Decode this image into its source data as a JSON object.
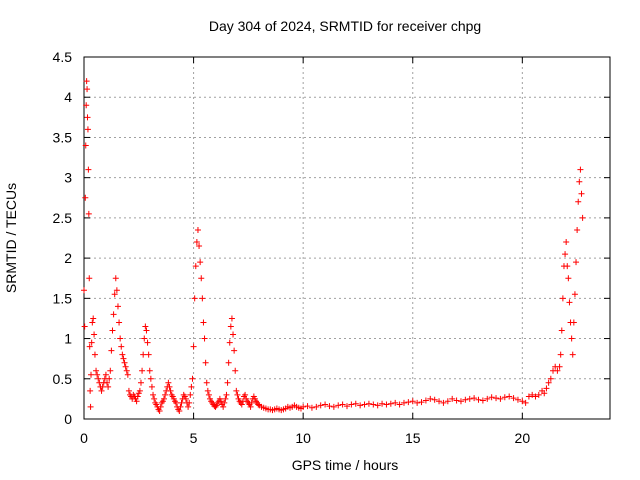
{
  "chart_data": {
    "type": "scatter",
    "title": "Day 304 of 2024, SRMTID for receiver chpg",
    "xlabel": "GPS time / hours",
    "ylabel": "SRMTID / TECUs",
    "xlim": [
      0,
      24
    ],
    "ylim": [
      0,
      4.5
    ],
    "xticks": [
      0,
      5,
      10,
      15,
      20
    ],
    "xtick_labels": [
      "0",
      "5",
      "10",
      "15",
      "20"
    ],
    "yticks": [
      0,
      0.5,
      1,
      1.5,
      2,
      2.5,
      3,
      3.5,
      4,
      4.5
    ],
    "ytick_labels": [
      "0",
      "0.5",
      "1",
      "1.5",
      "2",
      "2.5",
      "3",
      "3.5",
      "4",
      "4.5"
    ],
    "grid": true,
    "marker": "plus",
    "series": [
      {
        "name": "SRMTID",
        "color": "#ff0000",
        "points": [
          [
            0.0,
            1.6
          ],
          [
            0.03,
            1.15
          ],
          [
            0.06,
            2.75
          ],
          [
            0.08,
            3.4
          ],
          [
            0.1,
            3.9
          ],
          [
            0.12,
            4.2
          ],
          [
            0.14,
            4.1
          ],
          [
            0.16,
            3.75
          ],
          [
            0.18,
            3.6
          ],
          [
            0.2,
            3.1
          ],
          [
            0.22,
            2.55
          ],
          [
            0.24,
            1.75
          ],
          [
            0.26,
            0.9
          ],
          [
            0.28,
            0.35
          ],
          [
            0.3,
            0.15
          ],
          [
            0.32,
            0.55
          ],
          [
            0.35,
            0.95
          ],
          [
            0.38,
            1.2
          ],
          [
            0.42,
            1.25
          ],
          [
            0.46,
            1.05
          ],
          [
            0.5,
            0.8
          ],
          [
            0.55,
            0.6
          ],
          [
            0.6,
            0.55
          ],
          [
            0.65,
            0.5
          ],
          [
            0.7,
            0.45
          ],
          [
            0.75,
            0.4
          ],
          [
            0.8,
            0.35
          ],
          [
            0.85,
            0.4
          ],
          [
            0.9,
            0.45
          ],
          [
            0.95,
            0.5
          ],
          [
            1.0,
            0.55
          ],
          [
            1.05,
            0.45
          ],
          [
            1.1,
            0.4
          ],
          [
            1.15,
            0.5
          ],
          [
            1.2,
            0.6
          ],
          [
            1.25,
            0.85
          ],
          [
            1.3,
            1.1
          ],
          [
            1.35,
            1.3
          ],
          [
            1.4,
            1.55
          ],
          [
            1.45,
            1.75
          ],
          [
            1.5,
            1.6
          ],
          [
            1.55,
            1.4
          ],
          [
            1.6,
            1.2
          ],
          [
            1.65,
            1.0
          ],
          [
            1.7,
            0.9
          ],
          [
            1.75,
            0.8
          ],
          [
            1.8,
            0.75
          ],
          [
            1.85,
            0.7
          ],
          [
            1.9,
            0.65
          ],
          [
            1.95,
            0.6
          ],
          [
            2.0,
            0.55
          ],
          [
            2.05,
            0.35
          ],
          [
            2.1,
            0.3
          ],
          [
            2.15,
            0.28
          ],
          [
            2.2,
            0.25
          ],
          [
            2.25,
            0.3
          ],
          [
            2.3,
            0.28
          ],
          [
            2.35,
            0.25
          ],
          [
            2.4,
            0.22
          ],
          [
            2.45,
            0.28
          ],
          [
            2.5,
            0.32
          ],
          [
            2.55,
            0.35
          ],
          [
            2.6,
            0.45
          ],
          [
            2.65,
            0.6
          ],
          [
            2.7,
            0.8
          ],
          [
            2.75,
            1.0
          ],
          [
            2.8,
            1.15
          ],
          [
            2.85,
            1.1
          ],
          [
            2.9,
            0.95
          ],
          [
            2.95,
            0.8
          ],
          [
            3.0,
            0.6
          ],
          [
            3.05,
            0.5
          ],
          [
            3.1,
            0.4
          ],
          [
            3.15,
            0.3
          ],
          [
            3.2,
            0.25
          ],
          [
            3.25,
            0.2
          ],
          [
            3.3,
            0.18
          ],
          [
            3.35,
            0.15
          ],
          [
            3.4,
            0.12
          ],
          [
            3.45,
            0.1
          ],
          [
            3.5,
            0.15
          ],
          [
            3.55,
            0.2
          ],
          [
            3.6,
            0.22
          ],
          [
            3.65,
            0.25
          ],
          [
            3.7,
            0.3
          ],
          [
            3.75,
            0.35
          ],
          [
            3.8,
            0.4
          ],
          [
            3.85,
            0.45
          ],
          [
            3.9,
            0.4
          ],
          [
            3.95,
            0.35
          ],
          [
            4.0,
            0.3
          ],
          [
            4.05,
            0.28
          ],
          [
            4.1,
            0.25
          ],
          [
            4.15,
            0.22
          ],
          [
            4.2,
            0.2
          ],
          [
            4.25,
            0.15
          ],
          [
            4.3,
            0.12
          ],
          [
            4.35,
            0.1
          ],
          [
            4.4,
            0.15
          ],
          [
            4.45,
            0.2
          ],
          [
            4.5,
            0.25
          ],
          [
            4.55,
            0.3
          ],
          [
            4.6,
            0.28
          ],
          [
            4.65,
            0.25
          ],
          [
            4.7,
            0.2
          ],
          [
            4.75,
            0.15
          ],
          [
            4.8,
            0.2
          ],
          [
            4.85,
            0.3
          ],
          [
            4.9,
            0.4
          ],
          [
            4.95,
            0.5
          ],
          [
            5.0,
            0.9
          ],
          [
            5.05,
            1.5
          ],
          [
            5.1,
            1.9
          ],
          [
            5.15,
            2.2
          ],
          [
            5.2,
            2.35
          ],
          [
            5.25,
            2.15
          ],
          [
            5.3,
            1.95
          ],
          [
            5.35,
            1.75
          ],
          [
            5.4,
            1.5
          ],
          [
            5.45,
            1.2
          ],
          [
            5.5,
            1.0
          ],
          [
            5.55,
            0.7
          ],
          [
            5.6,
            0.45
          ],
          [
            5.65,
            0.35
          ],
          [
            5.7,
            0.3
          ],
          [
            5.75,
            0.25
          ],
          [
            5.8,
            0.22
          ],
          [
            5.85,
            0.2
          ],
          [
            5.9,
            0.18
          ],
          [
            5.95,
            0.16
          ],
          [
            6.0,
            0.15
          ],
          [
            6.05,
            0.17
          ],
          [
            6.1,
            0.2
          ],
          [
            6.15,
            0.22
          ],
          [
            6.2,
            0.25
          ],
          [
            6.25,
            0.22
          ],
          [
            6.3,
            0.18
          ],
          [
            6.35,
            0.15
          ],
          [
            6.4,
            0.2
          ],
          [
            6.45,
            0.25
          ],
          [
            6.5,
            0.3
          ],
          [
            6.55,
            0.45
          ],
          [
            6.6,
            0.7
          ],
          [
            6.65,
            0.95
          ],
          [
            6.7,
            1.15
          ],
          [
            6.75,
            1.25
          ],
          [
            6.8,
            1.05
          ],
          [
            6.85,
            0.85
          ],
          [
            6.9,
            0.6
          ],
          [
            6.95,
            0.35
          ],
          [
            7.0,
            0.3
          ],
          [
            7.05,
            0.25
          ],
          [
            7.1,
            0.22
          ],
          [
            7.15,
            0.2
          ],
          [
            7.2,
            0.18
          ],
          [
            7.25,
            0.22
          ],
          [
            7.3,
            0.28
          ],
          [
            7.35,
            0.3
          ],
          [
            7.4,
            0.25
          ],
          [
            7.45,
            0.22
          ],
          [
            7.5,
            0.2
          ],
          [
            7.55,
            0.18
          ],
          [
            7.6,
            0.15
          ],
          [
            7.65,
            0.2
          ],
          [
            7.7,
            0.25
          ],
          [
            7.75,
            0.28
          ],
          [
            7.8,
            0.25
          ],
          [
            7.85,
            0.22
          ],
          [
            7.9,
            0.2
          ],
          [
            7.95,
            0.18
          ],
          [
            8.0,
            0.17
          ],
          [
            8.1,
            0.15
          ],
          [
            8.2,
            0.14
          ],
          [
            8.3,
            0.13
          ],
          [
            8.4,
            0.12
          ],
          [
            8.5,
            0.12
          ],
          [
            8.6,
            0.11
          ],
          [
            8.7,
            0.12
          ],
          [
            8.8,
            0.13
          ],
          [
            8.9,
            0.12
          ],
          [
            9.0,
            0.11
          ],
          [
            9.1,
            0.12
          ],
          [
            9.2,
            0.13
          ],
          [
            9.3,
            0.15
          ],
          [
            9.4,
            0.14
          ],
          [
            9.5,
            0.15
          ],
          [
            9.6,
            0.17
          ],
          [
            9.7,
            0.15
          ],
          [
            9.8,
            0.14
          ],
          [
            9.9,
            0.13
          ],
          [
            10.0,
            0.15
          ],
          [
            10.2,
            0.16
          ],
          [
            10.4,
            0.14
          ],
          [
            10.6,
            0.15
          ],
          [
            10.8,
            0.17
          ],
          [
            11.0,
            0.18
          ],
          [
            11.2,
            0.16
          ],
          [
            11.4,
            0.15
          ],
          [
            11.6,
            0.17
          ],
          [
            11.8,
            0.18
          ],
          [
            12.0,
            0.16
          ],
          [
            12.2,
            0.18
          ],
          [
            12.4,
            0.19
          ],
          [
            12.6,
            0.17
          ],
          [
            12.8,
            0.18
          ],
          [
            13.0,
            0.19
          ],
          [
            13.2,
            0.18
          ],
          [
            13.4,
            0.17
          ],
          [
            13.6,
            0.19
          ],
          [
            13.8,
            0.18
          ],
          [
            14.0,
            0.19
          ],
          [
            14.2,
            0.2
          ],
          [
            14.4,
            0.18
          ],
          [
            14.6,
            0.2
          ],
          [
            14.8,
            0.21
          ],
          [
            15.0,
            0.22
          ],
          [
            15.2,
            0.2
          ],
          [
            15.4,
            0.21
          ],
          [
            15.6,
            0.23
          ],
          [
            15.8,
            0.25
          ],
          [
            16.0,
            0.24
          ],
          [
            16.2,
            0.22
          ],
          [
            16.4,
            0.2
          ],
          [
            16.6,
            0.22
          ],
          [
            16.8,
            0.25
          ],
          [
            17.0,
            0.23
          ],
          [
            17.2,
            0.22
          ],
          [
            17.4,
            0.24
          ],
          [
            17.6,
            0.25
          ],
          [
            17.8,
            0.26
          ],
          [
            18.0,
            0.24
          ],
          [
            18.2,
            0.23
          ],
          [
            18.4,
            0.25
          ],
          [
            18.6,
            0.27
          ],
          [
            18.8,
            0.26
          ],
          [
            19.0,
            0.25
          ],
          [
            19.2,
            0.27
          ],
          [
            19.4,
            0.28
          ],
          [
            19.6,
            0.26
          ],
          [
            19.8,
            0.24
          ],
          [
            20.0,
            0.22
          ],
          [
            20.15,
            0.2
          ],
          [
            20.3,
            0.28
          ],
          [
            20.45,
            0.3
          ],
          [
            20.6,
            0.28
          ],
          [
            20.75,
            0.3
          ],
          [
            20.9,
            0.35
          ],
          [
            21.0,
            0.32
          ],
          [
            21.1,
            0.38
          ],
          [
            21.2,
            0.45
          ],
          [
            21.3,
            0.5
          ],
          [
            21.4,
            0.6
          ],
          [
            21.5,
            0.65
          ],
          [
            21.6,
            0.6
          ],
          [
            21.7,
            0.65
          ],
          [
            21.75,
            0.8
          ],
          [
            21.8,
            1.1
          ],
          [
            21.85,
            1.5
          ],
          [
            21.9,
            1.9
          ],
          [
            21.95,
            2.05
          ],
          [
            22.0,
            2.2
          ],
          [
            22.05,
            1.9
          ],
          [
            22.1,
            1.75
          ],
          [
            22.15,
            1.45
          ],
          [
            22.2,
            1.2
          ],
          [
            22.25,
            1.0
          ],
          [
            22.3,
            0.8
          ],
          [
            22.35,
            1.2
          ],
          [
            22.4,
            1.55
          ],
          [
            22.45,
            1.95
          ],
          [
            22.5,
            2.35
          ],
          [
            22.55,
            2.7
          ],
          [
            22.6,
            2.95
          ],
          [
            22.65,
            3.1
          ],
          [
            22.7,
            2.8
          ],
          [
            22.75,
            2.5
          ]
        ]
      }
    ]
  }
}
